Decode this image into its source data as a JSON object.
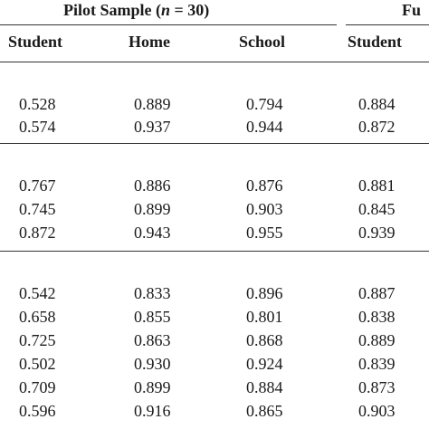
{
  "groups": [
    {
      "title_prefix": "Pilot Sample (",
      "n_symbol": "n",
      "title_suffix": " = 30)"
    },
    {
      "title": "Fu"
    }
  ],
  "columns": [
    "Student",
    "Home",
    "School",
    "Student"
  ],
  "sections": [
    {
      "rows": [
        [
          "0.528",
          "0.889",
          "0.794",
          "0.884"
        ],
        [
          "0.574",
          "0.937",
          "0.944",
          "0.872"
        ]
      ]
    },
    {
      "rows": [
        [
          "0.767",
          "0.886",
          "0.876",
          "0.881"
        ],
        [
          "0.745",
          "0.899",
          "0.903",
          "0.845"
        ],
        [
          "0.872",
          "0.943",
          "0.955",
          "0.939"
        ]
      ]
    },
    {
      "rows": [
        [
          "0.542",
          "0.833",
          "0.896",
          "0.887"
        ],
        [
          "0.658",
          "0.855",
          "0.801",
          "0.838"
        ],
        [
          "0.725",
          "0.863",
          "0.868",
          "0.889"
        ],
        [
          "0.502",
          "0.930",
          "0.924",
          "0.839"
        ],
        [
          "0.709",
          "0.899",
          "0.884",
          "0.873"
        ],
        [
          "0.596",
          "0.916",
          "0.865",
          "0.903"
        ]
      ]
    }
  ]
}
